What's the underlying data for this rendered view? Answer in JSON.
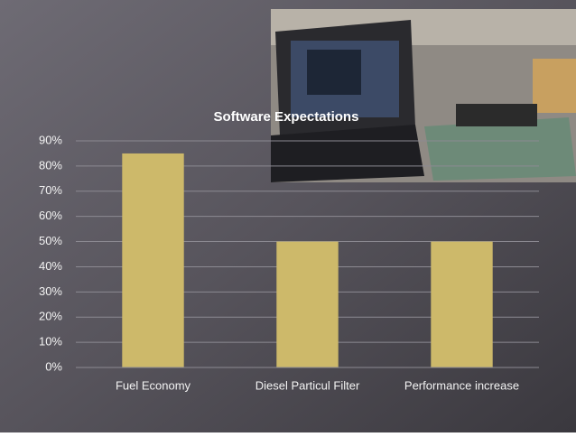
{
  "chart_data": {
    "type": "bar",
    "title": "Software Expectations",
    "categories": [
      "Fuel Economy",
      "Diesel Particul Filter",
      "Performance increase"
    ],
    "values": [
      85,
      50,
      50
    ],
    "color": "#cdb96a",
    "ylim": [
      0,
      90
    ],
    "yticks": [
      {
        "value": 0,
        "label": "0%"
      },
      {
        "value": 10,
        "label": "10%"
      },
      {
        "value": 20,
        "label": "20%"
      },
      {
        "value": 30,
        "label": "30%"
      },
      {
        "value": 40,
        "label": "40%"
      },
      {
        "value": 50,
        "label": "50%"
      },
      {
        "value": 60,
        "label": "60%"
      },
      {
        "value": 70,
        "label": "70%"
      },
      {
        "value": 80,
        "label": "80%"
      },
      {
        "value": 90,
        "label": "90%"
      }
    ],
    "grid": true
  }
}
